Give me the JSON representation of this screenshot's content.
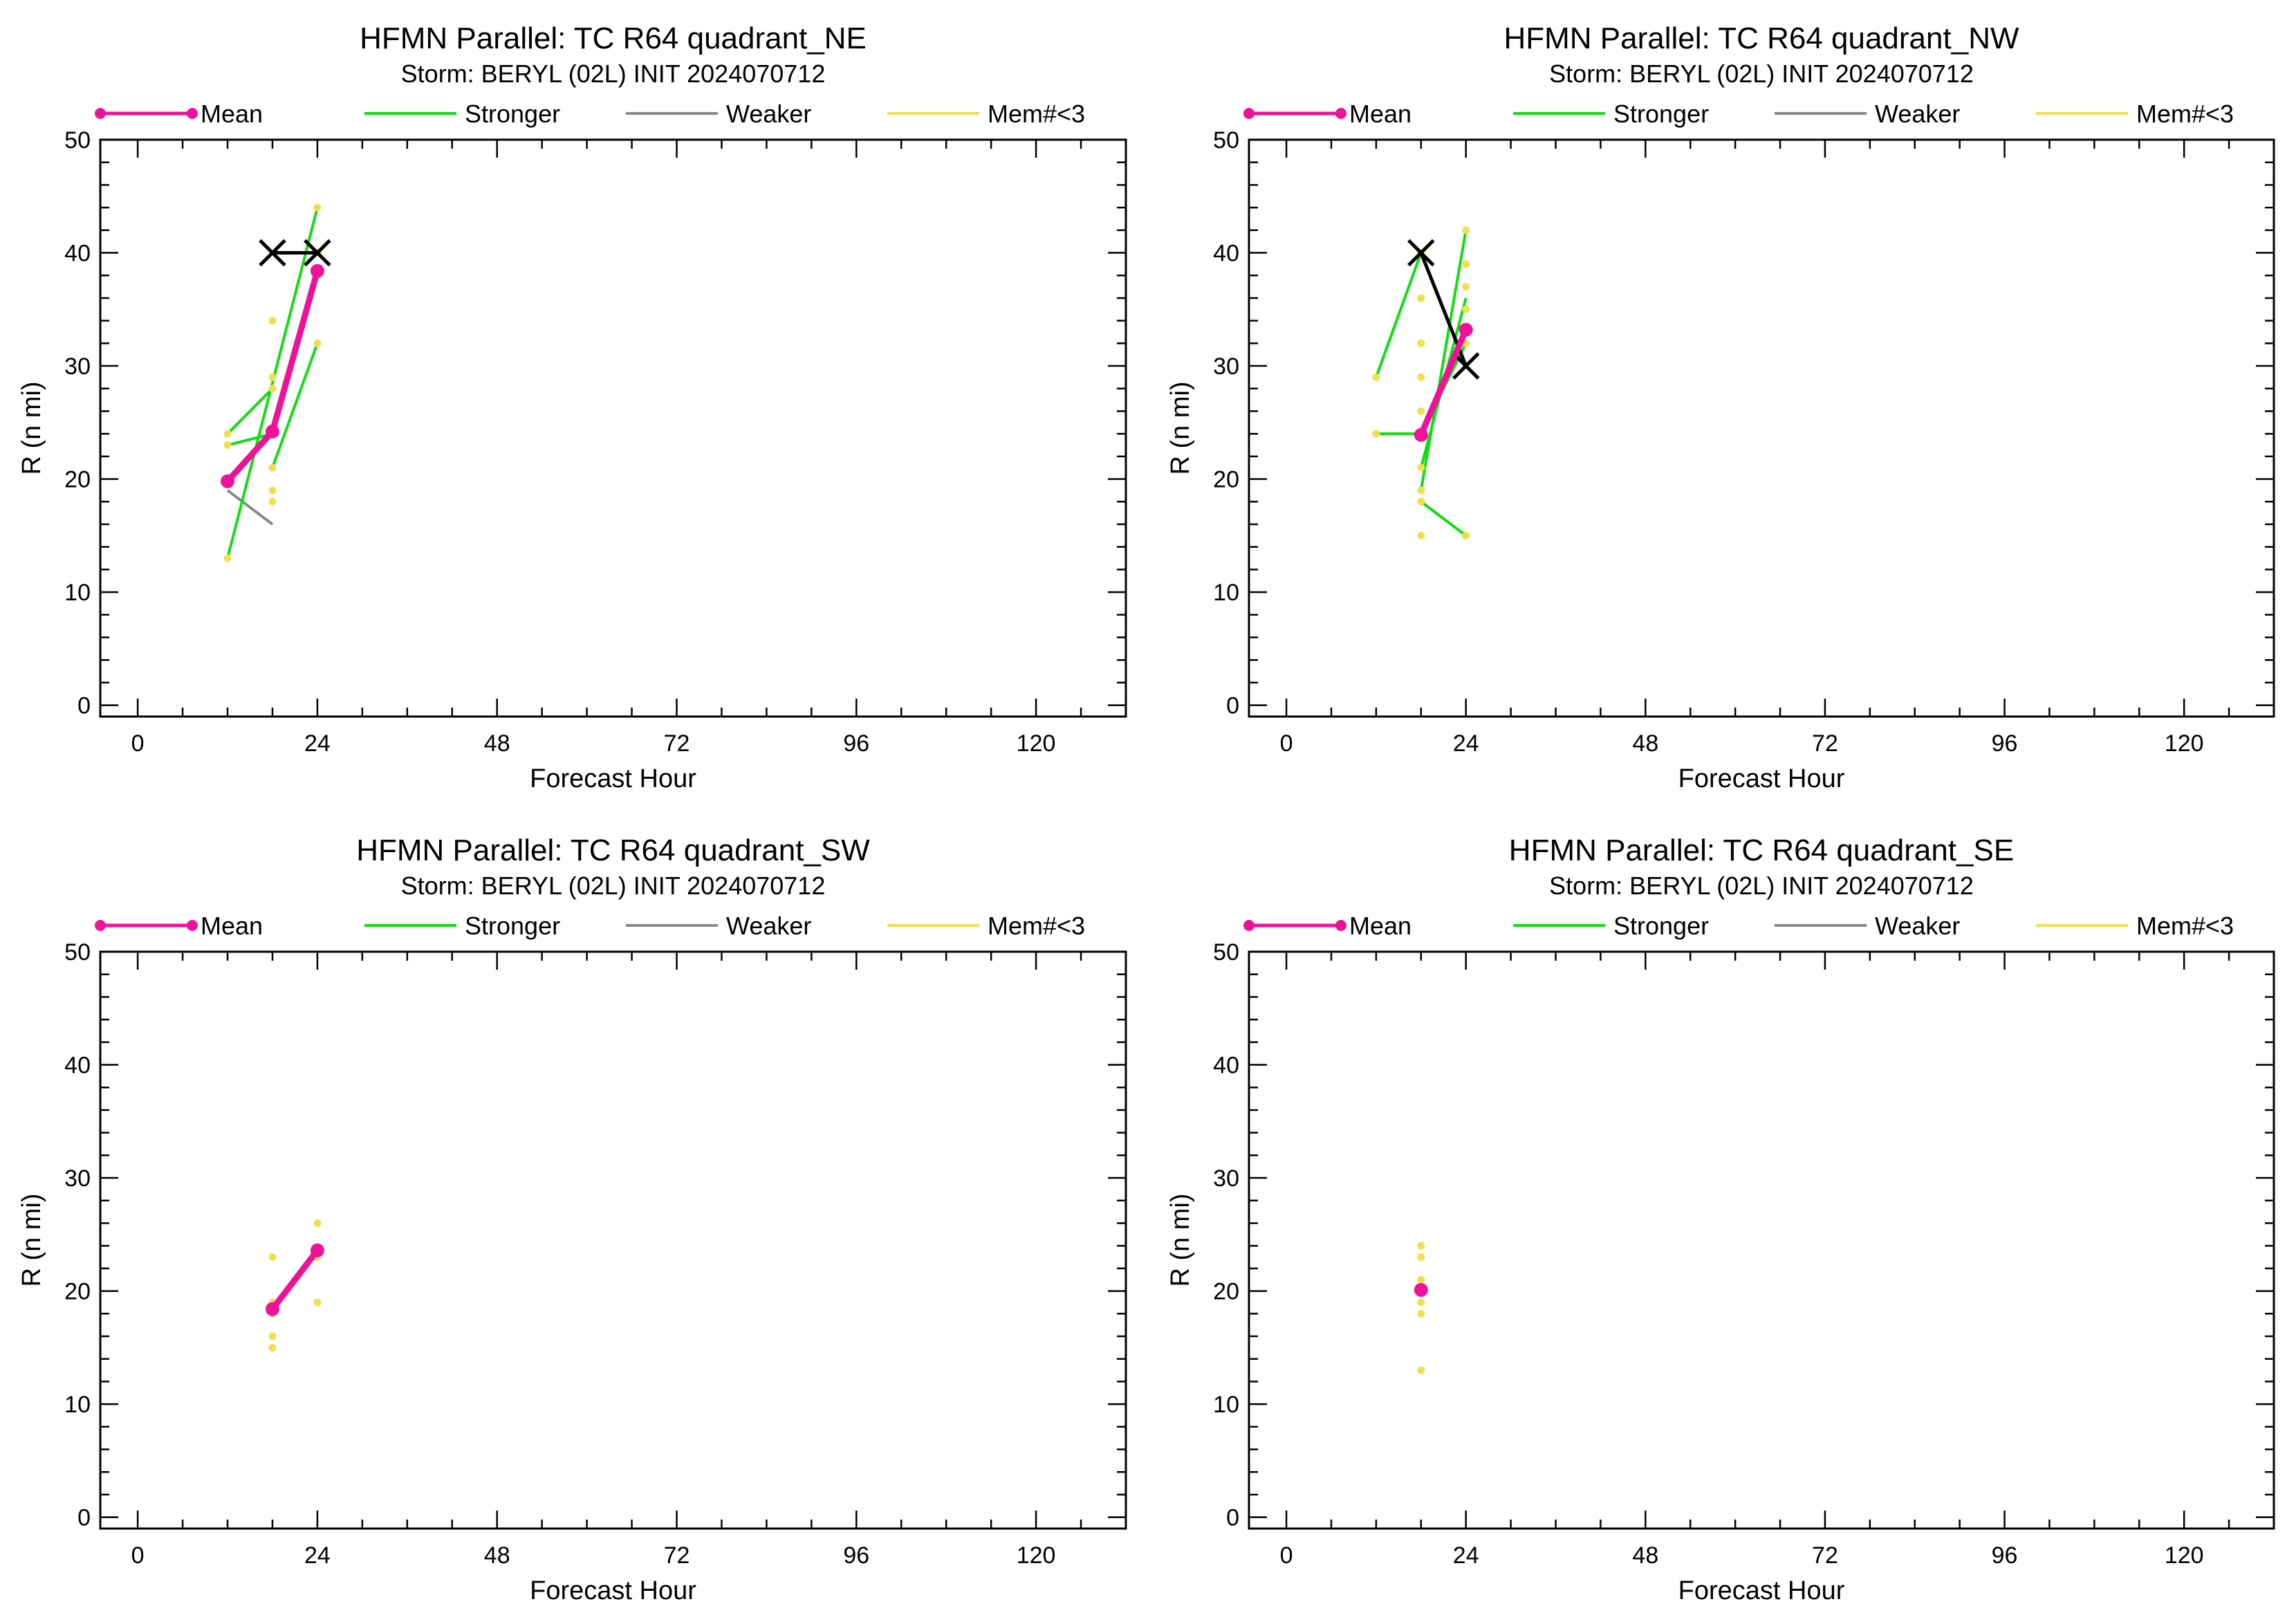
{
  "figure": {
    "legend_labels": {
      "mean": "Mean",
      "stronger": "Stronger",
      "weaker": "Weaker",
      "few_members": "Mem#<3"
    },
    "colors": {
      "mean": "#ee1199",
      "stronger": "#11dd11",
      "weaker": "#888888",
      "few_members": "#f0e050",
      "observed": "#000000",
      "axes": "#000000",
      "background": "#ffffff"
    }
  },
  "chart_data": [
    {
      "type": "line",
      "title": "HFMN Parallel: TC  R64 quadrant_NE",
      "subtitle": "Storm: BERYL (02L) INIT 2024070712",
      "xlabel": "Forecast Hour",
      "ylabel": "R (n mi)",
      "xlim": [
        -5,
        132
      ],
      "ylim": [
        -1,
        50
      ],
      "xticks": [
        0,
        24,
        48,
        72,
        96,
        120
      ],
      "yticks": [
        0,
        10,
        20,
        30,
        40,
        50
      ],
      "legend_position": "top",
      "mean": {
        "x": [
          12,
          18,
          24
        ],
        "y": [
          19.8,
          24.2,
          38.4
        ]
      },
      "observed": {
        "x": [
          18,
          24
        ],
        "y": [
          40,
          40
        ]
      },
      "stronger": [
        {
          "x": [
            12,
            18
          ],
          "y": [
            24,
            28
          ]
        },
        {
          "x": [
            12,
            18
          ],
          "y": [
            23,
            24
          ]
        },
        {
          "x": [
            12,
            24
          ],
          "y": [
            13,
            44
          ]
        },
        {
          "x": [
            18,
            24
          ],
          "y": [
            21,
            32
          ]
        },
        {
          "x": [
            18,
            24
          ],
          "y": [
            24,
            38
          ]
        }
      ],
      "weaker": [
        {
          "x": [
            12,
            18
          ],
          "y": [
            19,
            16
          ]
        }
      ],
      "few_members": {
        "x": [
          12,
          12,
          12,
          18,
          18,
          18,
          18,
          18,
          18,
          18,
          24,
          24,
          24,
          24
        ],
        "y": [
          24,
          23,
          13,
          34,
          29,
          28,
          24,
          21,
          19,
          18,
          44,
          38,
          32,
          40
        ]
      }
    },
    {
      "type": "line",
      "title": "HFMN Parallel: TC  R64 quadrant_NW",
      "subtitle": "Storm: BERYL (02L) INIT 2024070712",
      "xlabel": "Forecast Hour",
      "ylabel": "R (n mi)",
      "xlim": [
        -5,
        132
      ],
      "ylim": [
        -1,
        50
      ],
      "xticks": [
        0,
        24,
        48,
        72,
        96,
        120
      ],
      "yticks": [
        0,
        10,
        20,
        30,
        40,
        50
      ],
      "legend_position": "top",
      "mean": {
        "x": [
          18,
          24
        ],
        "y": [
          23.9,
          33.2
        ]
      },
      "observed": {
        "x": [
          18,
          24
        ],
        "y": [
          40,
          30
        ]
      },
      "stronger": [
        {
          "x": [
            12,
            18
          ],
          "y": [
            29,
            40
          ]
        },
        {
          "x": [
            12,
            18
          ],
          "y": [
            24,
            24
          ]
        },
        {
          "x": [
            18,
            24
          ],
          "y": [
            18,
            15
          ]
        },
        {
          "x": [
            18,
            24
          ],
          "y": [
            19,
            42
          ]
        },
        {
          "x": [
            18,
            24
          ],
          "y": [
            21,
            36
          ]
        },
        {
          "x": [
            18,
            24
          ],
          "y": [
            24,
            32
          ]
        }
      ],
      "weaker": [],
      "few_members": {
        "x": [
          12,
          12,
          18,
          18,
          18,
          18,
          18,
          18,
          18,
          18,
          18,
          18,
          24,
          24,
          24,
          24,
          24,
          24
        ],
        "y": [
          29,
          24,
          40,
          36,
          32,
          29,
          26,
          24,
          21,
          19,
          18,
          15,
          42,
          39,
          37,
          35,
          32,
          15
        ]
      }
    },
    {
      "type": "line",
      "title": "HFMN Parallel: TC  R64 quadrant_SW",
      "subtitle": "Storm: BERYL (02L) INIT 2024070712",
      "xlabel": "Forecast Hour",
      "ylabel": "R (n mi)",
      "xlim": [
        -5,
        132
      ],
      "ylim": [
        -1,
        50
      ],
      "xticks": [
        0,
        24,
        48,
        72,
        96,
        120
      ],
      "yticks": [
        0,
        10,
        20,
        30,
        40,
        50
      ],
      "legend_position": "top",
      "mean": {
        "x": [
          18,
          24
        ],
        "y": [
          18.4,
          23.6
        ]
      },
      "observed": {
        "x": [],
        "y": []
      },
      "stronger": [],
      "weaker": [],
      "few_members": {
        "x": [
          18,
          18,
          18,
          18,
          18,
          24,
          24,
          24
        ],
        "y": [
          23,
          19,
          16,
          15,
          18,
          26,
          23,
          19
        ]
      }
    },
    {
      "type": "line",
      "title": "HFMN Parallel: TC  R64 quadrant_SE",
      "subtitle": "Storm: BERYL (02L) INIT 2024070712",
      "xlabel": "Forecast Hour",
      "ylabel": "R (n mi)",
      "xlim": [
        -5,
        132
      ],
      "ylim": [
        -1,
        50
      ],
      "xticks": [
        0,
        24,
        48,
        72,
        96,
        120
      ],
      "yticks": [
        0,
        10,
        20,
        30,
        40,
        50
      ],
      "legend_position": "top",
      "mean": {
        "x": [
          18
        ],
        "y": [
          20.1
        ]
      },
      "observed": {
        "x": [],
        "y": []
      },
      "stronger": [],
      "weaker": [],
      "few_members": {
        "x": [
          18,
          18,
          18,
          18,
          18,
          18,
          18
        ],
        "y": [
          24,
          23,
          21,
          20,
          19,
          18,
          13
        ]
      }
    }
  ]
}
